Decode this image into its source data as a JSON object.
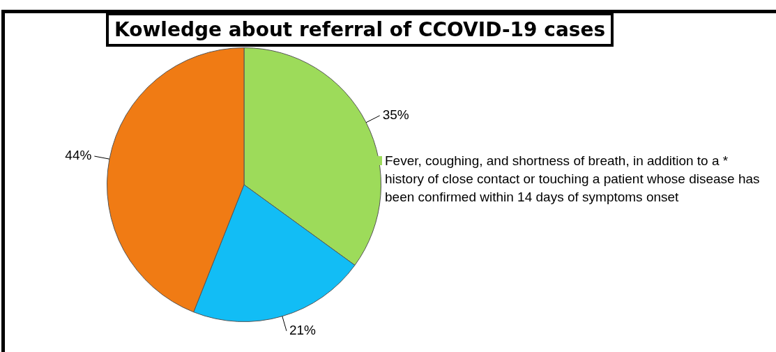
{
  "chart_data": {
    "type": "pie",
    "title": "Kowledge about referral of CCOVID-19 cases",
    "categories": [
      "Fever, coughing, and shortness of breath, in addition to a * history of close contact or touching a patient whose disease has been confirmed within 14 days of symptoms onset",
      null,
      null
    ],
    "values": [
      35,
      21,
      44
    ],
    "colors": [
      "#9ddb5a",
      "#12bdf5",
      "#f07b14"
    ],
    "value_labels": [
      "35%",
      "21%",
      "44%"
    ],
    "legend": "right"
  }
}
